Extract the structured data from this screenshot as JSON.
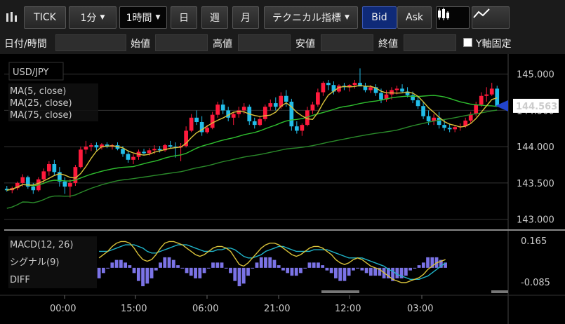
{
  "toolbar": {
    "chart_type_icon": "candlestick-mini-icon",
    "tick_label": "TICK",
    "one_min_label": "1分",
    "one_hour_label": "1時間",
    "day_label": "日",
    "week_label": "週",
    "month_label": "月",
    "technical_label": "テクニカル指標",
    "bid_label": "Bid",
    "ask_label": "Ask",
    "candle_icon": "candlestick-icon",
    "line_icon": "line-chart-icon"
  },
  "filters": {
    "datetime_label": "日付/時間",
    "open_label": "始値",
    "high_label": "高値",
    "low_label": "安値",
    "close_label": "終値",
    "yfix_label": "Y軸固定"
  },
  "colors": {
    "up": "#ff1a3c",
    "down": "#22bde8",
    "ma5": "#d8c23a",
    "ma25": "#2fbf2f",
    "ma75": "#2a8a2a",
    "macd": "#d8c23a",
    "signal": "#1fb4c9",
    "diff": "#7b73e6",
    "price_marker": "#2244cc"
  },
  "chart_data": {
    "type": "candlestick",
    "symbol": "USD/JPY",
    "legend": [
      "MA(5, close)",
      "MA(25, close)",
      "MA(75, close)"
    ],
    "ylim": [
      142.9,
      145.2
    ],
    "yticks": [
      "145.000",
      "144.500",
      "144.000",
      "143.500",
      "143.000"
    ],
    "current_price": "144.563",
    "x_ticks": [
      "00:00",
      "15:00",
      "06:00",
      "21:00",
      "12:00",
      "03:00"
    ],
    "candles": [
      [
        143.42,
        143.46,
        143.38,
        143.4
      ],
      [
        143.4,
        143.45,
        143.36,
        143.43
      ],
      [
        143.43,
        143.52,
        143.4,
        143.5
      ],
      [
        143.5,
        143.62,
        143.45,
        143.58
      ],
      [
        143.58,
        143.6,
        143.42,
        143.45
      ],
      [
        143.45,
        143.5,
        143.35,
        143.4
      ],
      [
        143.4,
        143.58,
        143.38,
        143.55
      ],
      [
        143.55,
        143.7,
        143.5,
        143.66
      ],
      [
        143.66,
        143.8,
        143.6,
        143.76
      ],
      [
        143.76,
        143.82,
        143.6,
        143.65
      ],
      [
        143.65,
        143.72,
        143.45,
        143.52
      ],
      [
        143.52,
        143.58,
        143.35,
        143.45
      ],
      [
        143.45,
        143.55,
        143.3,
        143.5
      ],
      [
        143.5,
        143.75,
        143.46,
        143.72
      ],
      [
        143.72,
        144.0,
        143.7,
        143.96
      ],
      [
        143.96,
        144.08,
        143.9,
        144.0
      ],
      [
        144.0,
        144.05,
        143.94,
        144.02
      ],
      [
        144.02,
        144.06,
        143.95,
        143.99
      ],
      [
        143.99,
        144.05,
        143.96,
        144.03
      ],
      [
        144.03,
        144.06,
        143.98,
        144.0
      ],
      [
        144.0,
        144.04,
        143.96,
        144.02
      ],
      [
        144.02,
        144.06,
        143.95,
        143.97
      ],
      [
        143.97,
        144.01,
        143.86,
        143.9
      ],
      [
        143.9,
        143.95,
        143.78,
        143.82
      ],
      [
        143.82,
        143.9,
        143.76,
        143.86
      ],
      [
        143.86,
        143.96,
        143.82,
        143.93
      ],
      [
        143.93,
        143.97,
        143.88,
        143.91
      ],
      [
        143.91,
        143.98,
        143.88,
        143.95
      ],
      [
        143.95,
        144.02,
        143.9,
        143.97
      ],
      [
        143.97,
        144.01,
        143.92,
        143.95
      ],
      [
        143.95,
        144.04,
        143.93,
        144.02
      ],
      [
        144.02,
        144.08,
        143.98,
        144.0
      ],
      [
        144.0,
        144.06,
        143.85,
        143.99
      ],
      [
        143.99,
        144.05,
        143.8,
        144.01
      ],
      [
        144.01,
        144.28,
        143.99,
        144.22
      ],
      [
        144.22,
        144.45,
        144.2,
        144.4
      ],
      [
        144.4,
        144.5,
        144.3,
        144.34
      ],
      [
        144.34,
        144.42,
        144.15,
        144.2
      ],
      [
        144.2,
        144.3,
        144.18,
        144.26
      ],
      [
        144.26,
        144.48,
        144.24,
        144.44
      ],
      [
        144.44,
        144.62,
        144.4,
        144.58
      ],
      [
        144.58,
        144.65,
        144.45,
        144.5
      ],
      [
        144.5,
        144.55,
        144.35,
        144.4
      ],
      [
        144.4,
        144.48,
        144.3,
        144.45
      ],
      [
        144.45,
        144.55,
        144.4,
        144.5
      ],
      [
        144.5,
        144.6,
        144.45,
        144.55
      ],
      [
        144.55,
        144.58,
        144.3,
        144.35
      ],
      [
        144.35,
        144.4,
        144.25,
        144.3
      ],
      [
        144.3,
        144.42,
        144.28,
        144.38
      ],
      [
        144.38,
        144.58,
        144.35,
        144.55
      ],
      [
        144.55,
        144.65,
        144.5,
        144.6
      ],
      [
        144.6,
        144.68,
        144.5,
        144.55
      ],
      [
        144.55,
        144.75,
        144.52,
        144.7
      ],
      [
        144.7,
        144.78,
        144.55,
        144.62
      ],
      [
        144.62,
        144.66,
        144.22,
        144.28
      ],
      [
        144.28,
        144.35,
        144.18,
        144.22
      ],
      [
        144.22,
        144.32,
        144.15,
        144.3
      ],
      [
        144.3,
        144.55,
        144.28,
        144.5
      ],
      [
        144.5,
        144.62,
        144.45,
        144.58
      ],
      [
        144.58,
        144.8,
        144.55,
        144.75
      ],
      [
        144.75,
        144.9,
        144.7,
        144.88
      ],
      [
        144.88,
        144.92,
        144.78,
        144.85
      ],
      [
        144.85,
        144.9,
        144.72,
        144.76
      ],
      [
        144.76,
        144.86,
        144.74,
        144.84
      ],
      [
        144.84,
        144.88,
        144.78,
        144.82
      ],
      [
        144.82,
        144.86,
        144.76,
        144.85
      ],
      [
        144.85,
        144.92,
        144.8,
        144.88
      ],
      [
        144.88,
        145.08,
        144.85,
        144.83
      ],
      [
        144.83,
        144.88,
        144.75,
        144.78
      ],
      [
        144.78,
        144.85,
        144.74,
        144.82
      ],
      [
        144.82,
        144.86,
        144.7,
        144.74
      ],
      [
        144.74,
        144.8,
        144.6,
        144.65
      ],
      [
        144.65,
        144.78,
        144.62,
        144.72
      ],
      [
        144.72,
        144.82,
        144.65,
        144.78
      ],
      [
        144.78,
        144.84,
        144.72,
        144.8
      ],
      [
        144.8,
        144.86,
        144.74,
        144.76
      ],
      [
        144.76,
        144.82,
        144.68,
        144.71
      ],
      [
        144.71,
        144.76,
        144.6,
        144.64
      ],
      [
        144.64,
        144.7,
        144.52,
        144.56
      ],
      [
        144.56,
        144.62,
        144.38,
        144.42
      ],
      [
        144.42,
        144.5,
        144.3,
        144.35
      ],
      [
        144.35,
        144.45,
        144.3,
        144.4
      ],
      [
        144.4,
        144.48,
        144.25,
        144.3
      ],
      [
        144.3,
        144.38,
        144.22,
        144.26
      ],
      [
        144.26,
        144.32,
        144.2,
        144.24
      ],
      [
        144.24,
        144.3,
        144.2,
        144.27
      ],
      [
        144.27,
        144.32,
        144.22,
        144.28
      ],
      [
        144.28,
        144.4,
        144.26,
        144.36
      ],
      [
        144.36,
        144.48,
        144.32,
        144.45
      ],
      [
        144.45,
        144.62,
        144.42,
        144.58
      ],
      [
        144.58,
        144.75,
        144.55,
        144.7
      ],
      [
        144.7,
        144.82,
        144.62,
        144.72
      ],
      [
        144.72,
        144.88,
        144.7,
        144.8
      ],
      [
        144.8,
        144.84,
        144.55,
        144.56
      ]
    ],
    "macd": {
      "legend": [
        "MACD(12, 26)",
        "シグナル(9)",
        "DIFF"
      ],
      "yticks": [
        "0.165",
        "-0.085"
      ],
      "ylim": [
        -0.12,
        0.2
      ],
      "macd": [
        0.06,
        0.08,
        0.1,
        0.13,
        0.15,
        0.16,
        0.16,
        0.15,
        0.12,
        0.08,
        0.05,
        0.04,
        0.05,
        0.08,
        0.12,
        0.15,
        0.16,
        0.16,
        0.15,
        0.14,
        0.12,
        0.1,
        0.08,
        0.07,
        0.08,
        0.1,
        0.12,
        0.13,
        0.13,
        0.12,
        0.1,
        0.06,
        0.02,
        0.01,
        0.03,
        0.06,
        0.09,
        0.12,
        0.14,
        0.15,
        0.15,
        0.14,
        0.12,
        0.1,
        0.08,
        0.07,
        0.08,
        0.1,
        0.12,
        0.13,
        0.13,
        0.12,
        0.1,
        0.08,
        0.05,
        0.03,
        0.02,
        0.03,
        0.05,
        0.06,
        0.05,
        0.03,
        0.01,
        0.0,
        -0.01,
        -0.03,
        -0.05,
        -0.07,
        -0.08,
        -0.09,
        -0.09,
        -0.08,
        -0.07,
        -0.06,
        -0.04,
        -0.01,
        0.01,
        0.03,
        0.04,
        0.05
      ],
      "signal": [
        0.1,
        0.1,
        0.1,
        0.11,
        0.12,
        0.13,
        0.14,
        0.14,
        0.14,
        0.13,
        0.12,
        0.1,
        0.09,
        0.09,
        0.1,
        0.11,
        0.12,
        0.13,
        0.14,
        0.14,
        0.14,
        0.13,
        0.12,
        0.11,
        0.1,
        0.1,
        0.1,
        0.11,
        0.11,
        0.12,
        0.12,
        0.11,
        0.09,
        0.07,
        0.06,
        0.06,
        0.07,
        0.08,
        0.1,
        0.11,
        0.12,
        0.13,
        0.13,
        0.12,
        0.11,
        0.1,
        0.1,
        0.1,
        0.1,
        0.11,
        0.11,
        0.11,
        0.11,
        0.1,
        0.09,
        0.08,
        0.07,
        0.06,
        0.06,
        0.06,
        0.06,
        0.05,
        0.04,
        0.03,
        0.02,
        0.01,
        -0.01,
        -0.02,
        -0.04,
        -0.05,
        -0.06,
        -0.07,
        -0.07,
        -0.07,
        -0.06,
        -0.05,
        -0.03,
        -0.01,
        0.01,
        0.03
      ]
    }
  }
}
